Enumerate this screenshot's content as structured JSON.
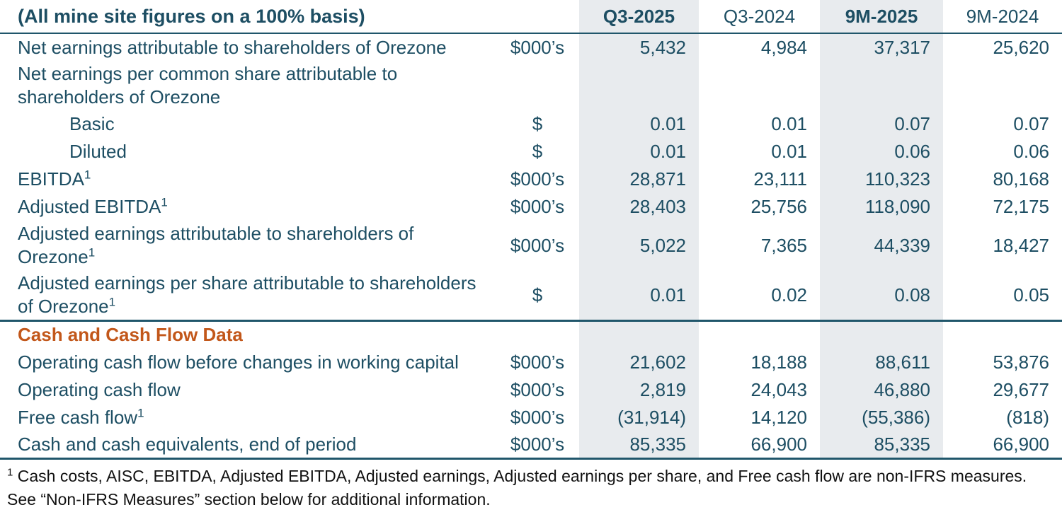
{
  "table": {
    "title": "(All mine site figures on a 100% basis)",
    "columns": [
      {
        "label": "Q3-2025",
        "highlight": true
      },
      {
        "label": "Q3-2024",
        "highlight": false
      },
      {
        "label": "9M-2025",
        "highlight": true
      },
      {
        "label": "9M-2024",
        "highlight": false
      }
    ],
    "rows": [
      {
        "lines": [
          "Net earnings attributable to shareholders of Orezone"
        ],
        "unit": "$000’s",
        "values": [
          "5,432",
          "4,984",
          "37,317",
          "25,620"
        ]
      },
      {
        "lines": [
          "Net earnings per common share attributable to",
          "shareholders of Orezone"
        ],
        "unit": "",
        "values": [
          "",
          "",
          "",
          ""
        ]
      },
      {
        "lines": [
          "Basic"
        ],
        "indent": true,
        "unit": "$",
        "values": [
          "0.01",
          "0.01",
          "0.07",
          "0.07"
        ]
      },
      {
        "lines": [
          "Diluted"
        ],
        "indent": true,
        "unit": "$",
        "values": [
          "0.01",
          "0.01",
          "0.06",
          "0.06"
        ]
      },
      {
        "lines": [
          "EBITDA"
        ],
        "sup": "1",
        "unit": "$000’s",
        "values": [
          "28,871",
          "23,111",
          "110,323",
          "80,168"
        ]
      },
      {
        "lines": [
          "Adjusted EBITDA"
        ],
        "sup": "1",
        "unit": "$000’s",
        "values": [
          "28,403",
          "25,756",
          "118,090",
          "72,175"
        ]
      },
      {
        "lines": [
          "Adjusted earnings attributable to shareholders of",
          "Orezone"
        ],
        "sup": "1",
        "unit": "$000’s",
        "values": [
          "5,022",
          "7,365",
          "44,339",
          "18,427"
        ]
      },
      {
        "lines": [
          "Adjusted earnings per share attributable to shareholders",
          "of Orezone"
        ],
        "sup": "1",
        "unit": "$",
        "values": [
          "0.01",
          "0.02",
          "0.08",
          "0.05"
        ]
      },
      {
        "lines": [
          "Cash and Cash Flow Data"
        ],
        "section": true,
        "unit": "",
        "values": [
          "",
          "",
          "",
          ""
        ]
      },
      {
        "lines": [
          "Operating cash flow before changes in working capital"
        ],
        "unit": "$000’s",
        "values": [
          "21,602",
          "18,188",
          "88,611",
          "53,876"
        ]
      },
      {
        "lines": [
          "Operating cash flow"
        ],
        "unit": "$000’s",
        "values": [
          "2,819",
          "24,043",
          "46,880",
          "29,677"
        ]
      },
      {
        "lines": [
          "Free cash flow"
        ],
        "sup": "1",
        "unit": "$000’s",
        "values": [
          "(31,914)",
          "14,120",
          "(55,386)",
          "(818)"
        ]
      },
      {
        "lines": [
          "Cash and cash equivalents, end of period"
        ],
        "unit": "$000’s",
        "values": [
          "85,335",
          "66,900",
          "85,335",
          "66,900"
        ],
        "border_bottom": true
      }
    ]
  },
  "footnote": {
    "sup": "1",
    "text": "Cash costs, AISC, EBITDA, Adjusted EBITDA, Adjusted earnings, Adjusted earnings per share, and Free cash flow are non-IFRS measures.  See “Non-IFRS Measures” section below for additional information."
  },
  "colors": {
    "text_teal": "#1d4e63",
    "section_orange": "#c2571a",
    "column_highlight": "#e8ebee",
    "footnote_black": "#111111",
    "rule_teal": "#20566b"
  }
}
